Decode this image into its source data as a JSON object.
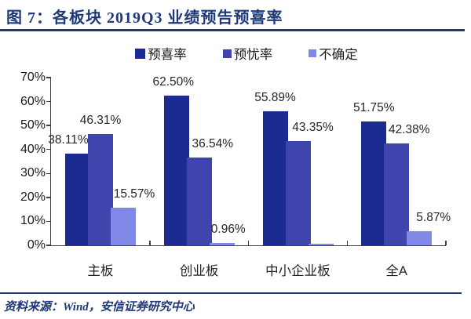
{
  "figure": {
    "title": "图 7：各板块 2019Q3 业绩预告预喜率",
    "source_note": "资料来源：Wind，安信证券研究中心"
  },
  "colors": {
    "accent_navy": "#1F3876",
    "axis": "#404040",
    "data_label_text": "#262626"
  },
  "chart_data": {
    "type": "bar",
    "title": "各板块 2019Q3 业绩预告预喜率",
    "categories": [
      "主板",
      "创业板",
      "中小企业板",
      "全A"
    ],
    "series": [
      {
        "name": "预喜率",
        "color": "#1B2B90",
        "values": [
          38.11,
          62.5,
          55.89,
          51.75
        ],
        "labels": [
          "38.11%",
          "62.50%",
          "55.89%",
          "51.75%"
        ]
      },
      {
        "name": "预忧率",
        "color": "#3F45AC",
        "values": [
          46.31,
          36.54,
          43.35,
          42.38
        ],
        "labels": [
          "46.31%",
          "36.54%",
          "43.35%",
          "42.38%"
        ]
      },
      {
        "name": "不确定",
        "color": "#8189E8",
        "values": [
          15.57,
          0.96,
          0.8,
          5.87
        ],
        "labels": [
          "15.57%",
          "0.96%",
          "",
          "5.87%"
        ]
      }
    ],
    "xlabel": "",
    "ylabel": "",
    "ylim": [
      0,
      70
    ],
    "ytick_step": 10,
    "ytick_labels": [
      "0%",
      "10%",
      "20%",
      "30%",
      "40%",
      "50%",
      "60%",
      "70%"
    ],
    "grid": false,
    "legend_position": "top"
  }
}
